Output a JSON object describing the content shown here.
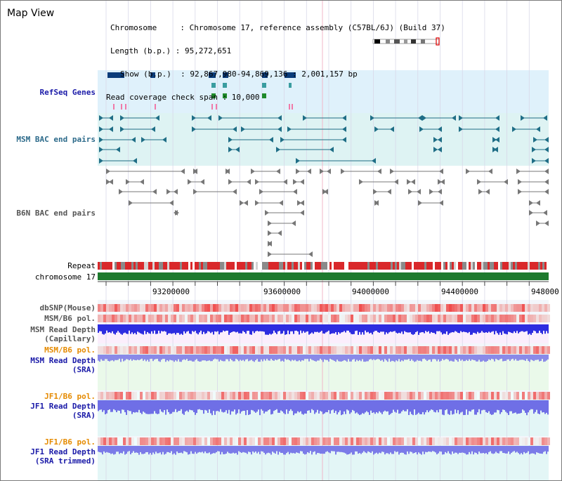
{
  "title": "Map View",
  "info": {
    "lines": [
      "Chromosome     : Chromosome 17, reference assembly (C57BL/6J) (Build 37)",
      "Length (b.p.) : 95,272,651",
      "Show (b.p.)  : 92,867,980-94,869,136 : 2,001,157 bp",
      "Read coverage check span : 10,000"
    ]
  },
  "colors": {
    "refseq_bg": "#dff1fb",
    "bac_msm_bg": "#def3f3",
    "gene_teal": "#3a9da0",
    "gene_dark": "#0b3c7a",
    "msm_color": "#1f6e86",
    "b6n_color": "#777777",
    "label_blue": "#1a1aa8",
    "label_teal": "#2c6a8a",
    "label_orange": "#e58a00",
    "chrom_green": "#1e7a2e",
    "repeat_red": "#d9282a"
  },
  "tracks": {
    "refseq": "RefSeq Genes",
    "msm_bac": "MSM BAC end pairs",
    "b6n_bac": "B6N BAC end pairs",
    "repeat": "Repeat",
    "chromosome": "chromosome 17",
    "dbsnp": "dbSNP(Mouse)",
    "msm_b6_pol_1": "MSM/B6 pol.",
    "msm_read_depth_cap_1": "MSM Read Depth",
    "msm_read_depth_cap_2": "(Capillary)",
    "msm_b6_pol_2": "MSM/B6 pol.",
    "msm_read_depth_sra_1": "MSM Read Depth",
    "msm_read_depth_sra_2": "(SRA)",
    "jf1_b6_pol_1": "JF1/B6 pol.",
    "jf1_read_depth_sra_1": "JF1 Read Depth",
    "jf1_read_depth_sra_2": "(SRA)",
    "jf1_b6_pol_2": "JF1/B6 pol.",
    "jf1_read_depth_trim_1": "JF1 Read Depth",
    "jf1_read_depth_trim_2": "(SRA trimmed)"
  },
  "axis": {
    "ticks": [
      "93200000",
      "93600000",
      "94000000",
      "94400000",
      "948000"
    ]
  }
}
